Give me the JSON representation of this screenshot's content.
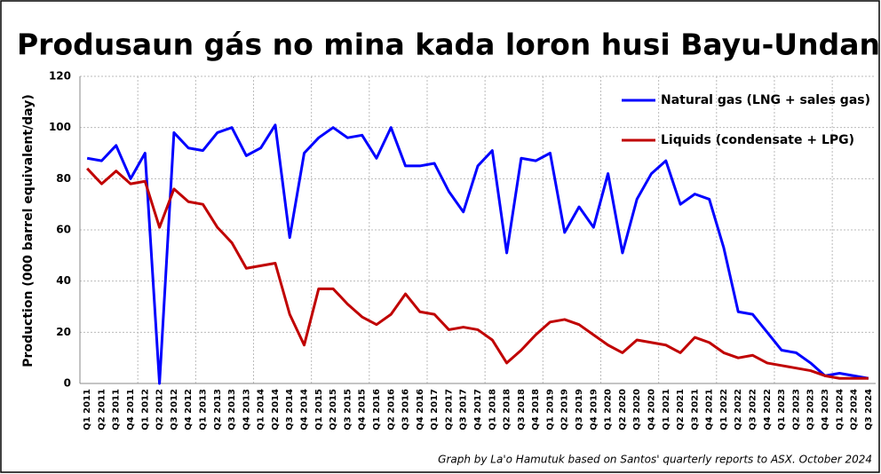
{
  "chart_data": {
    "type": "line",
    "title": "Produsaun gás no mina kada loron husi Bayu-Undan",
    "y_label": "Production (000 barrel equivalent/day)",
    "source": "Graph by La'o Hamutuk based on Santos' quarterly reports to ASX.  October 2024",
    "categories": [
      "Q1 2011",
      "Q2 2011",
      "Q3 2011",
      "Q4 2011",
      "Q1 2012",
      "Q2 2012",
      "Q3 2012",
      "Q4 2012",
      "Q1 2013",
      "Q2 2013",
      "Q3 2013",
      "Q4 2013",
      "Q1 2014",
      "Q2 2014",
      "Q3 2014",
      "Q4 2014",
      "Q1 2015",
      "Q2 2015",
      "Q3 2015",
      "Q4 2015",
      "Q1 2016",
      "Q2 2016",
      "Q3 2016",
      "Q4 2016",
      "Q1 2017",
      "Q2 2017",
      "Q3 2017",
      "Q4 2017",
      "Q1 2018",
      "Q2 2018",
      "Q3 2018",
      "Q4 2018",
      "Q1 2019",
      "Q2 2019",
      "Q3 2019",
      "Q4 2019",
      "Q1 2020",
      "Q2 2020",
      "Q3 2020",
      "Q4 2020",
      "Q1 2021",
      "Q2 2021",
      "Q3 2021",
      "Q4 2021",
      "Q1 2022",
      "Q2 2022",
      "Q3 2022",
      "Q4 2022",
      "Q1 2023",
      "Q2 2023",
      "Q3 2023",
      "Q4 2023",
      "Q1 2024",
      "Q2 2024",
      "Q3 2024"
    ],
    "series": [
      {
        "name": "Natural gas (LNG + sales gas)",
        "color": "#0000ff",
        "values": [
          88,
          87,
          93,
          80,
          90,
          0,
          98,
          92,
          91,
          98,
          100,
          89,
          92,
          101,
          57,
          90,
          96,
          100,
          96,
          97,
          88,
          100,
          85,
          85,
          86,
          75,
          67,
          85,
          91,
          51,
          88,
          87,
          90,
          59,
          69,
          61,
          82,
          51,
          72,
          82,
          87,
          70,
          74,
          72,
          53,
          28,
          27,
          20,
          13,
          12,
          8,
          3,
          4,
          3,
          2
        ]
      },
      {
        "name": "Liquids (condensate + LPG)",
        "color": "#c00000",
        "values": [
          84,
          78,
          83,
          78,
          79,
          61,
          76,
          71,
          70,
          61,
          55,
          45,
          46,
          47,
          27,
          15,
          37,
          37,
          31,
          26,
          23,
          27,
          35,
          28,
          27,
          21,
          22,
          21,
          17,
          8,
          13,
          19,
          24,
          25,
          23,
          19,
          15,
          12,
          17,
          16,
          15,
          12,
          18,
          16,
          12,
          10,
          11,
          8,
          7,
          6,
          5,
          3,
          2,
          2,
          2
        ]
      }
    ],
    "ylim": [
      0,
      120
    ],
    "yticks": [
      0,
      20,
      40,
      60,
      80,
      100,
      120
    ],
    "grid": true
  }
}
